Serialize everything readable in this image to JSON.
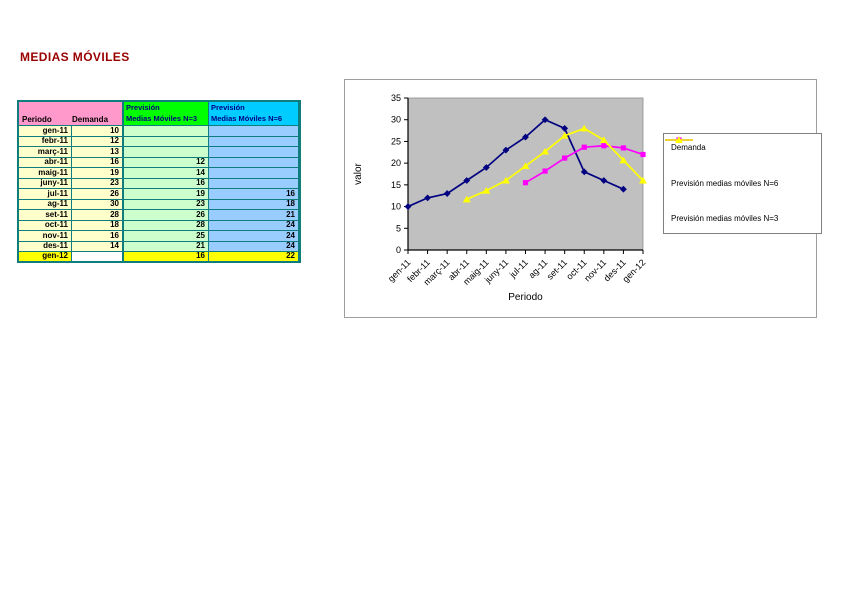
{
  "page_title": "MEDIAS MÓVILES",
  "colors": {
    "title": "#990000",
    "table_border": "#0f7d7d",
    "pink_header": "#FF99CC",
    "green_header": "#00FF00",
    "blue_header": "#00CCFF",
    "pale_yellow_cell": "#FFFFCC",
    "pale_green_cell": "#CCFFCC",
    "pale_blue_cell": "#99CCFF",
    "highlight_yellow": "#FFFF00",
    "plot_background": "#C0C0C0"
  },
  "table": {
    "headers": {
      "periodo": "Periodo",
      "demanda": "Demanda",
      "n3_line1": "Previsión",
      "n3_line2": "Medias Móviles N=3",
      "n6_line1": "Previsión",
      "n6_line2": "Medias Móviles N=6"
    },
    "rows": [
      {
        "periodo": "gen-11",
        "demanda": "10",
        "n3": "",
        "n6": ""
      },
      {
        "periodo": "febr-11",
        "demanda": "12",
        "n3": "",
        "n6": ""
      },
      {
        "periodo": "març-11",
        "demanda": "13",
        "n3": "",
        "n6": ""
      },
      {
        "periodo": "abr-11",
        "demanda": "16",
        "n3": "12",
        "n6": ""
      },
      {
        "periodo": "maig-11",
        "demanda": "19",
        "n3": "14",
        "n6": ""
      },
      {
        "periodo": "juny-11",
        "demanda": "23",
        "n3": "16",
        "n6": ""
      },
      {
        "periodo": "jul-11",
        "demanda": "26",
        "n3": "19",
        "n6": "16"
      },
      {
        "periodo": "ag-11",
        "demanda": "30",
        "n3": "23",
        "n6": "18"
      },
      {
        "periodo": "set-11",
        "demanda": "28",
        "n3": "26",
        "n6": "21"
      },
      {
        "periodo": "oct-11",
        "demanda": "18",
        "n3": "28",
        "n6": "24"
      },
      {
        "periodo": "nov-11",
        "demanda": "16",
        "n3": "25",
        "n6": "24"
      },
      {
        "periodo": "des-11",
        "demanda": "14",
        "n3": "21",
        "n6": "24"
      },
      {
        "periodo": "gen-12",
        "demanda": "",
        "n3": "16",
        "n6": "22",
        "highlight": true
      }
    ]
  },
  "chart_data": {
    "type": "line",
    "title": "",
    "xlabel": "Periodo",
    "ylabel": "valor",
    "ylim": [
      0,
      35
    ],
    "ytick_step": 5,
    "plot_bg": "#C0C0C0",
    "legend_position": "right",
    "categories": [
      "gen-11",
      "febr-11",
      "març-11",
      "abr-11",
      "maig-11",
      "juny-11",
      "jul-11",
      "ag-11",
      "set-11",
      "oct-11",
      "nov-11",
      "des-11",
      "gen-12"
    ],
    "series": [
      {
        "name": "Demanda",
        "color": "#000080",
        "marker": "diamond",
        "values": [
          10,
          12,
          13,
          16,
          19,
          23,
          26,
          30,
          28,
          18,
          16,
          14,
          null
        ]
      },
      {
        "name": "Previsión medias móviles N=6",
        "color": "#FF00FF",
        "marker": "square",
        "values": [
          null,
          null,
          null,
          null,
          null,
          null,
          15.5,
          18.17,
          21.17,
          23.67,
          24,
          23.5,
          22
        ]
      },
      {
        "name": "Previsión medias móviles N=3",
        "color": "#FFFF00",
        "marker": "triangle",
        "values": [
          null,
          null,
          null,
          11.67,
          13.67,
          16,
          19.33,
          22.67,
          26.33,
          28,
          25.33,
          20.67,
          16
        ]
      }
    ]
  }
}
